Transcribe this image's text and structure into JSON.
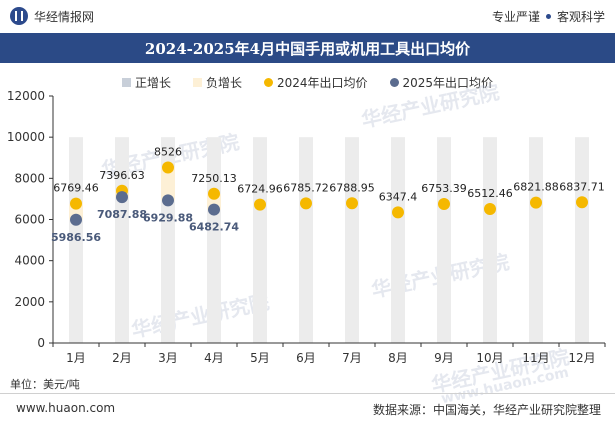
{
  "header": {
    "brand_name": "华经情报网",
    "slogan_left": "专业严谨",
    "slogan_right": "客观科学"
  },
  "title": "2024-2025年4月中国手用或机用工具出口均价",
  "legend": {
    "items": [
      {
        "label": "正增长",
        "color": "#c8cfd9",
        "shape": "square"
      },
      {
        "label": "负增长",
        "color": "#fdf0d6",
        "shape": "square"
      },
      {
        "label": "2024年出口均价",
        "color": "#f5b800",
        "shape": "circle"
      },
      {
        "label": "2025年出口均价",
        "color": "#5b6c8f",
        "shape": "circle"
      }
    ]
  },
  "unit_label": "单位：美元/吨",
  "footer": {
    "website": "www.huaon.com",
    "source": "数据来源：中国海关，华经产业研究院整理"
  },
  "watermarks": [
    "华经产业研究院",
    "www.huaon.com"
  ],
  "chart_data": {
    "type": "scatter",
    "categories": [
      "1月",
      "2月",
      "3月",
      "4月",
      "5月",
      "6月",
      "7月",
      "8月",
      "9月",
      "10月",
      "11月",
      "12月"
    ],
    "ylim": [
      0,
      12000
    ],
    "yticks": [
      0,
      2000,
      4000,
      6000,
      8000,
      10000,
      12000
    ],
    "grid": false,
    "series": [
      {
        "name": "2024年出口均价",
        "color": "#f5b800",
        "values": [
          6769.46,
          7396.63,
          8526,
          7250.13,
          6724.96,
          6785.72,
          6788.95,
          6347.4,
          6753.39,
          6512.46,
          6821.88,
          6837.71
        ],
        "labels": [
          "6769.46",
          "7396.63",
          "8526",
          "7250.13",
          "6724.96",
          "6785.72",
          "6788.95",
          "6347.4",
          "6753.39",
          "6512.46",
          "6821.88",
          "6837.71"
        ]
      },
      {
        "name": "2025年出口均价",
        "color": "#5b6c8f",
        "values": [
          5986.56,
          7087.88,
          6929.88,
          6482.74
        ],
        "labels": [
          "5986.56",
          "7087.88",
          "6929.88",
          "6482.74"
        ]
      }
    ],
    "range_bars": [
      {
        "month_index": 0,
        "sign": "负增长",
        "low": 5986.56,
        "high": 6769.46
      },
      {
        "month_index": 1,
        "sign": "负增长",
        "low": 7087.88,
        "high": 7396.63
      },
      {
        "month_index": 2,
        "sign": "负增长",
        "low": 6929.88,
        "high": 8526
      },
      {
        "month_index": 3,
        "sign": "负增长",
        "low": 6482.74,
        "high": 7250.13
      }
    ]
  }
}
